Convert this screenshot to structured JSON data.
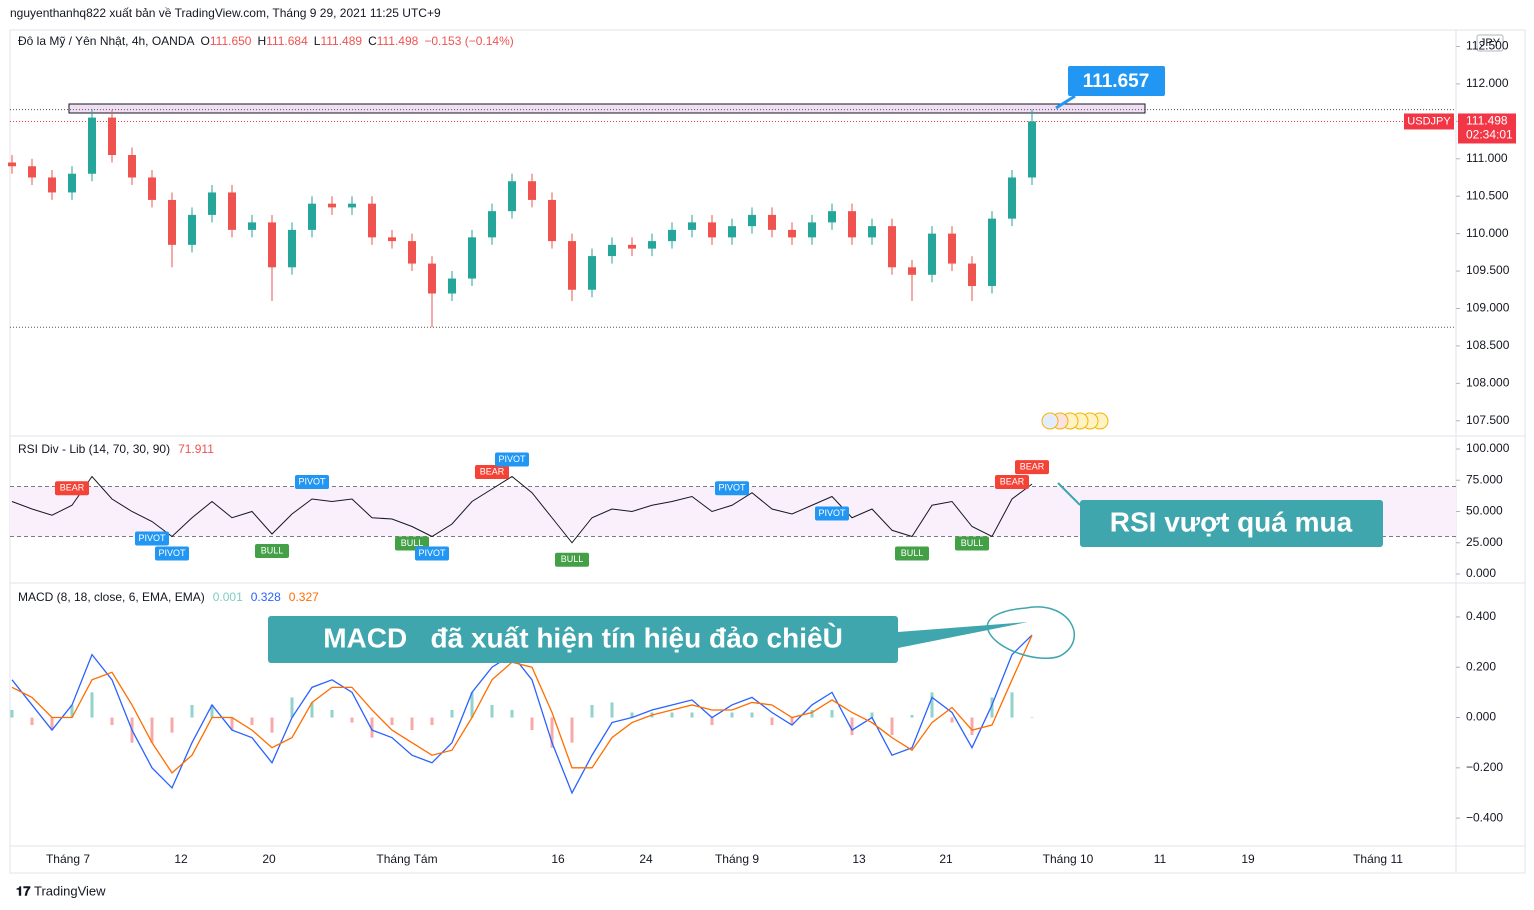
{
  "header": {
    "publisher": "nguyenthanhq822 xuất bản về TradingView.com, Tháng 9 29, 2021 11:25 UTC+9",
    "symbol": "Đô la Mỹ / Yên Nhật, 4h, OANDA",
    "ohlc": [
      {
        "label": "O",
        "value": "111.650"
      },
      {
        "label": "H",
        "value": "111.684"
      },
      {
        "label": "L",
        "value": "111.489"
      },
      {
        "label": "C",
        "value": "111.498"
      }
    ],
    "change": "−0.153 (−0.14%)"
  },
  "chart_data": [
    {
      "type": "candlestick",
      "up_color": "#26a69a",
      "down_color": "#ef5350",
      "open": [
        110.95,
        110.9,
        110.75,
        110.55,
        110.8,
        111.55,
        111.05,
        110.75,
        110.45,
        109.85,
        110.25,
        110.55,
        110.05,
        110.15,
        109.55,
        110.05,
        110.4,
        110.35,
        110.4,
        109.95,
        109.9,
        109.6,
        109.2,
        109.4,
        109.95,
        110.3,
        110.7,
        110.45,
        109.9,
        109.25,
        109.7,
        109.85,
        109.8,
        109.9,
        110.05,
        110.15,
        109.95,
        110.1,
        110.25,
        110.05,
        109.95,
        110.15,
        110.3,
        109.95,
        110.1,
        109.55,
        109.45,
        110.0,
        109.6,
        109.3,
        110.2,
        110.75
      ],
      "high": [
        111.05,
        111.0,
        110.85,
        110.9,
        111.66,
        111.65,
        111.15,
        110.85,
        110.55,
        110.35,
        110.65,
        110.65,
        110.25,
        110.25,
        110.15,
        110.5,
        110.5,
        110.5,
        110.5,
        110.05,
        110.0,
        109.7,
        109.5,
        110.05,
        110.4,
        110.8,
        110.8,
        110.55,
        110.0,
        109.8,
        109.95,
        109.95,
        110.0,
        110.15,
        110.25,
        110.25,
        110.2,
        110.35,
        110.35,
        110.15,
        110.25,
        110.4,
        110.4,
        110.2,
        110.2,
        109.65,
        110.1,
        110.1,
        109.7,
        110.3,
        110.85,
        111.657
      ],
      "low": [
        110.8,
        110.65,
        110.45,
        110.45,
        110.7,
        110.95,
        110.65,
        110.35,
        109.55,
        109.75,
        110.15,
        109.95,
        109.95,
        109.1,
        109.45,
        109.95,
        110.25,
        110.25,
        109.85,
        109.8,
        109.5,
        108.75,
        109.1,
        109.3,
        109.85,
        110.2,
        110.35,
        109.8,
        109.1,
        109.15,
        109.6,
        109.7,
        109.7,
        109.8,
        109.95,
        109.85,
        109.85,
        110.0,
        109.95,
        109.85,
        109.85,
        110.05,
        109.85,
        109.85,
        109.45,
        109.1,
        109.35,
        109.5,
        109.1,
        109.2,
        110.1,
        110.65
      ],
      "close": [
        110.9,
        110.75,
        110.55,
        110.8,
        111.55,
        111.05,
        110.75,
        110.45,
        109.85,
        110.25,
        110.55,
        110.05,
        110.15,
        109.55,
        110.05,
        110.4,
        110.35,
        110.4,
        109.95,
        109.9,
        109.6,
        109.2,
        109.4,
        109.95,
        110.3,
        110.7,
        110.45,
        109.9,
        109.25,
        109.7,
        109.85,
        109.8,
        109.9,
        110.05,
        110.15,
        109.95,
        110.1,
        110.25,
        110.05,
        109.95,
        110.15,
        110.3,
        109.95,
        110.1,
        109.55,
        109.45,
        110.0,
        109.6,
        109.3,
        110.2,
        110.75,
        111.498
      ],
      "ylim": [
        107.31,
        112.72
      ],
      "yticks": [
        {
          "value": 107.5,
          "label": "107.500"
        },
        {
          "value": 108,
          "label": "108.000"
        },
        {
          "value": 108.5,
          "label": "108.500"
        },
        {
          "value": 109,
          "label": "109.000"
        },
        {
          "value": 109.5,
          "label": "109.500"
        },
        {
          "value": 110,
          "label": "110.000"
        },
        {
          "value": 110.5,
          "label": "110.500"
        },
        {
          "value": 111,
          "label": "111.000"
        },
        {
          "value": 111.5,
          "label": "111.500"
        },
        {
          "value": 112,
          "label": "112.000"
        },
        {
          "value": 112.5,
          "label": "112.500"
        }
      ],
      "currency": "JPY",
      "last_price": {
        "symbol": "USDJPY",
        "value": 111.498,
        "countdown": "02:34:01",
        "color": "#f23645"
      },
      "levels": [
        111.657,
        108.75
      ],
      "annotation": 111.657
    },
    {
      "type": "line",
      "title": "RSI Div - Lib (14, 70, 30, 90)",
      "last": 71.911,
      "color": "#131722",
      "band_color": "#f9f0fc",
      "values": [
        58,
        52,
        47,
        55,
        78,
        60,
        50,
        42,
        30,
        45,
        58,
        45,
        50,
        32,
        48,
        60,
        58,
        60,
        45,
        44,
        38,
        30,
        40,
        58,
        68,
        78,
        65,
        45,
        25,
        45,
        52,
        50,
        55,
        58,
        62,
        50,
        55,
        65,
        52,
        48,
        55,
        62,
        45,
        52,
        35,
        30,
        55,
        58,
        38,
        30,
        60,
        71.911
      ],
      "ylim": [
        -6.4,
        109.6
      ],
      "yticks": [
        {
          "value": 0,
          "label": "0.000"
        },
        {
          "value": 25,
          "label": "25.000"
        },
        {
          "value": 50,
          "label": "50.000"
        },
        {
          "value": 75,
          "label": "75.000"
        },
        {
          "value": 100,
          "label": "100.000"
        }
      ],
      "bands": [
        30,
        70
      ],
      "signal_colors": {
        "PIVOT": "#2196f3",
        "BULL": "#43a047",
        "BEAR": "#f44336"
      },
      "signals": [
        {
          "label": "BEAR",
          "at": 3,
          "side": "top"
        },
        {
          "label": "PIVOT",
          "at": 15,
          "side": "top"
        },
        {
          "label": "BEAR",
          "at": 24,
          "side": "top"
        },
        {
          "label": "PIVOT",
          "at": 25,
          "side": "top"
        },
        {
          "label": "PIVOT",
          "at": 36,
          "side": "top"
        },
        {
          "label": "BEAR",
          "at": 50,
          "side": "top"
        },
        {
          "label": "BEAR",
          "at": 51,
          "side": "top"
        },
        {
          "label": "PIVOT",
          "at": 7,
          "side": "bottom"
        },
        {
          "label": "PIVOT",
          "at": 8,
          "side": "bottom"
        },
        {
          "label": "BULL",
          "at": 13,
          "side": "bottom"
        },
        {
          "label": "BULL",
          "at": 20,
          "side": "bottom"
        },
        {
          "label": "PIVOT",
          "at": 21,
          "side": "bottom"
        },
        {
          "label": "BULL",
          "at": 28,
          "side": "bottom"
        },
        {
          "label": "PIVOT",
          "at": 41,
          "side": "bottom"
        },
        {
          "label": "BULL",
          "at": 45,
          "side": "bottom"
        },
        {
          "label": "BULL",
          "at": 48,
          "side": "bottom"
        }
      ],
      "annotation": "RSI vượt quá mua"
    },
    {
      "type": "macd",
      "title": "MACD (8, 18, close, 6, EMA, EMA)",
      "histogram": {
        "color": "#26a69a",
        "negative_color": "#ef5350",
        "last": 0.001,
        "values": [
          0.03,
          -0.03,
          -0.05,
          0.05,
          0.1,
          -0.03,
          -0.1,
          -0.1,
          -0.06,
          0.05,
          0.05,
          -0.05,
          -0.03,
          -0.06,
          0.08,
          0.06,
          0.03,
          -0.02,
          -0.08,
          -0.03,
          -0.05,
          -0.03,
          0.03,
          0.1,
          0.05,
          0.03,
          -0.05,
          -0.12,
          -0.1,
          0.05,
          0.06,
          0.02,
          0.02,
          0.02,
          0.02,
          -0.03,
          0.02,
          0.02,
          -0.03,
          -0.03,
          0.03,
          0.03,
          -0.07,
          0.02,
          -0.07,
          0.01,
          0.1,
          -0.02,
          -0.07,
          0.08,
          0.1,
          0.001
        ]
      },
      "macd": {
        "color": "#2962ff",
        "last": 0.328,
        "values": [
          0.15,
          0.05,
          -0.05,
          0.05,
          0.25,
          0.15,
          -0.05,
          -0.2,
          -0.28,
          -0.1,
          0.05,
          -0.05,
          -0.08,
          -0.18,
          0.0,
          0.12,
          0.15,
          0.1,
          -0.05,
          -0.08,
          -0.15,
          -0.18,
          -0.1,
          0.1,
          0.2,
          0.25,
          0.15,
          -0.1,
          -0.3,
          -0.15,
          -0.02,
          0.0,
          0.03,
          0.05,
          0.07,
          0.0,
          0.05,
          0.08,
          0.02,
          -0.03,
          0.05,
          0.1,
          -0.05,
          0.0,
          -0.15,
          -0.12,
          0.08,
          0.02,
          -0.12,
          0.05,
          0.25,
          0.328
        ]
      },
      "signal": {
        "color": "#ff6d00",
        "last": 0.327,
        "values": [
          0.12,
          0.08,
          0.0,
          0.0,
          0.15,
          0.18,
          0.05,
          -0.1,
          -0.22,
          -0.15,
          0.0,
          0.0,
          -0.05,
          -0.12,
          -0.08,
          0.06,
          0.12,
          0.12,
          0.03,
          -0.05,
          -0.1,
          -0.15,
          -0.13,
          0.0,
          0.15,
          0.22,
          0.2,
          0.02,
          -0.2,
          -0.2,
          -0.08,
          -0.02,
          0.01,
          0.03,
          0.05,
          0.03,
          0.03,
          0.06,
          0.05,
          0.0,
          0.02,
          0.07,
          0.02,
          -0.02,
          -0.08,
          -0.13,
          -0.02,
          0.04,
          -0.05,
          -0.03,
          0.15,
          0.327
        ]
      },
      "ylim": [
        -0.507,
        0.531
      ],
      "yticks": [
        {
          "value": -0.4,
          "label": "−0.400"
        },
        {
          "value": -0.2,
          "label": "−0.200"
        },
        {
          "value": 0,
          "label": "0.000"
        },
        {
          "value": 0.2,
          "label": "0.200"
        },
        {
          "value": 0.4,
          "label": "0.400"
        }
      ],
      "annotation": "MACD   đã xuất hiện tín hiệu đảo chiêÙ"
    }
  ],
  "time_axis": [
    "Tháng 7",
    "12",
    "20",
    "Tháng Tám",
    "16",
    "24",
    "Tháng 9",
    "13",
    "21",
    "Tháng 10",
    "11",
    "19",
    "Tháng 11"
  ],
  "footer": "TradingView"
}
